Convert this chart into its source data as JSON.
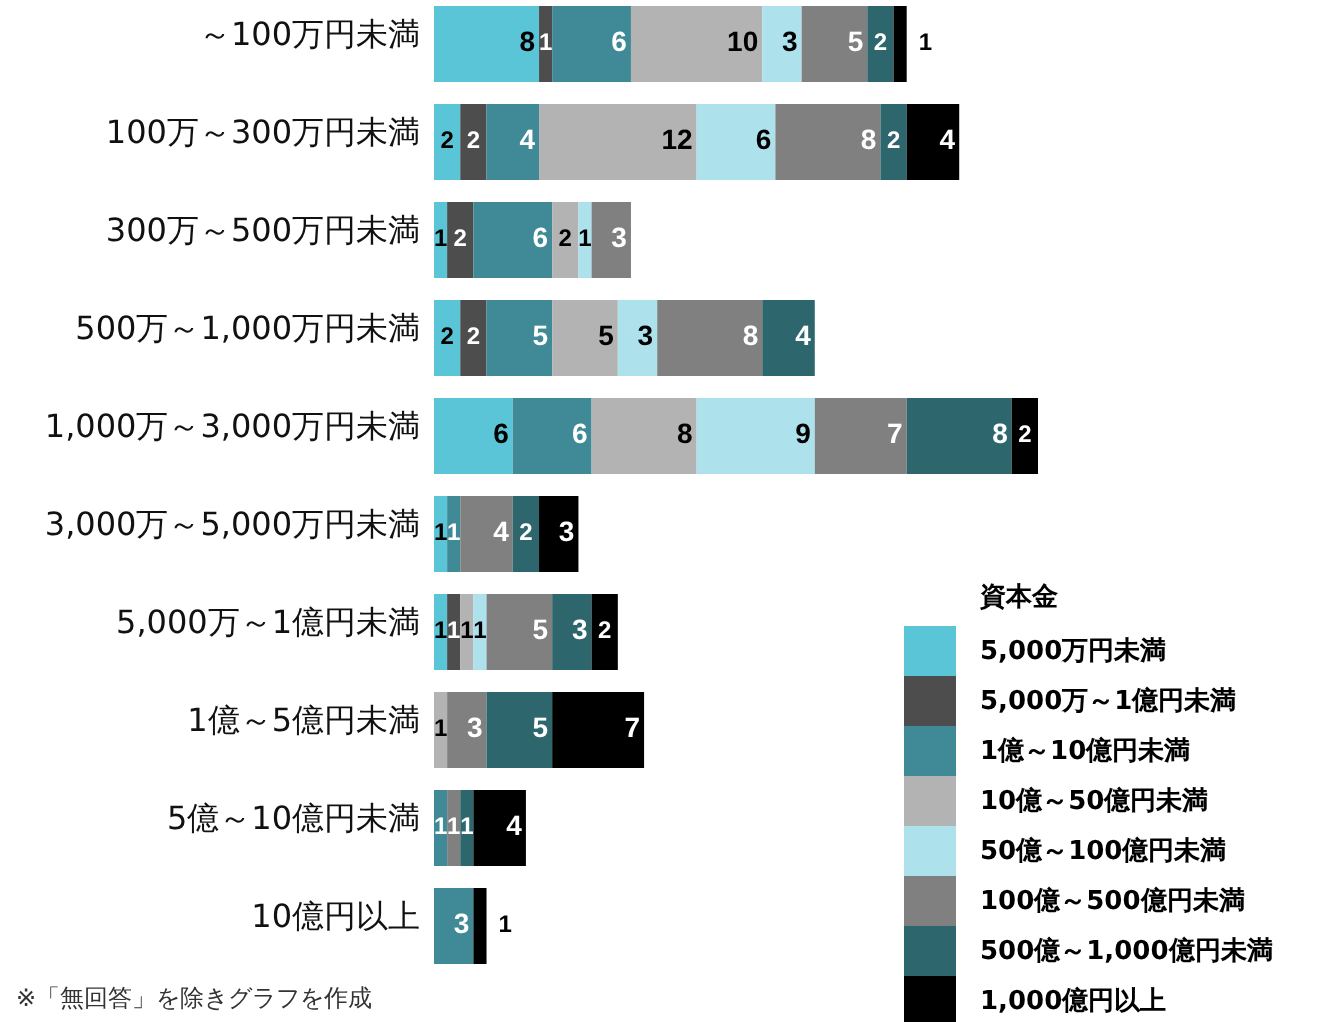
{
  "chart_data": {
    "type": "bar",
    "orientation": "horizontal",
    "stacked": true,
    "data_labels": true,
    "legend": "bottom right",
    "legend_title": "資本金",
    "categories": [
      "～100万円未満",
      "100万～300万円未満",
      "300万～500万円未満",
      "500万～1,000万円未満",
      "1,000万～3,000万円未満",
      "3,000万～5,000万円未満",
      "5,000万～1億円未満",
      "1億～5億円未満",
      "5億～10億円未満",
      "10億円以上"
    ],
    "series": [
      {
        "name": "5,000万円未満",
        "color": "#5bc5d8",
        "values": [
          8,
          2,
          1,
          2,
          6,
          1,
          1,
          null,
          null,
          null
        ]
      },
      {
        "name": "5,000万～1億円未満",
        "color": "#4d4d4d",
        "values": [
          1,
          2,
          2,
          2,
          null,
          null,
          1,
          null,
          null,
          null
        ]
      },
      {
        "name": "1億～10億円未満",
        "color": "#3f8a96",
        "values": [
          6,
          4,
          6,
          5,
          6,
          1,
          null,
          null,
          1,
          3
        ]
      },
      {
        "name": "10億～50億円未満",
        "color": "#b3b3b3",
        "values": [
          10,
          12,
          2,
          5,
          8,
          null,
          1,
          1,
          null,
          null
        ]
      },
      {
        "name": "50億～100億円未満",
        "color": "#ade2ec",
        "values": [
          3,
          6,
          1,
          3,
          9,
          null,
          1,
          null,
          null,
          null
        ]
      },
      {
        "name": "100億～500億円未満",
        "color": "#808080",
        "values": [
          5,
          8,
          3,
          8,
          7,
          4,
          5,
          3,
          1,
          null
        ]
      },
      {
        "name": "500億～1,000億円未満",
        "color": "#2e666e",
        "values": [
          2,
          2,
          null,
          4,
          8,
          2,
          3,
          5,
          1,
          null
        ]
      },
      {
        "name": "1,000億円以上",
        "color": "#000000",
        "values": [
          1,
          4,
          null,
          null,
          2,
          3,
          2,
          7,
          4,
          1
        ]
      }
    ],
    "annotations": [
      "※「無回答」を除きグラフを作成"
    ]
  }
}
